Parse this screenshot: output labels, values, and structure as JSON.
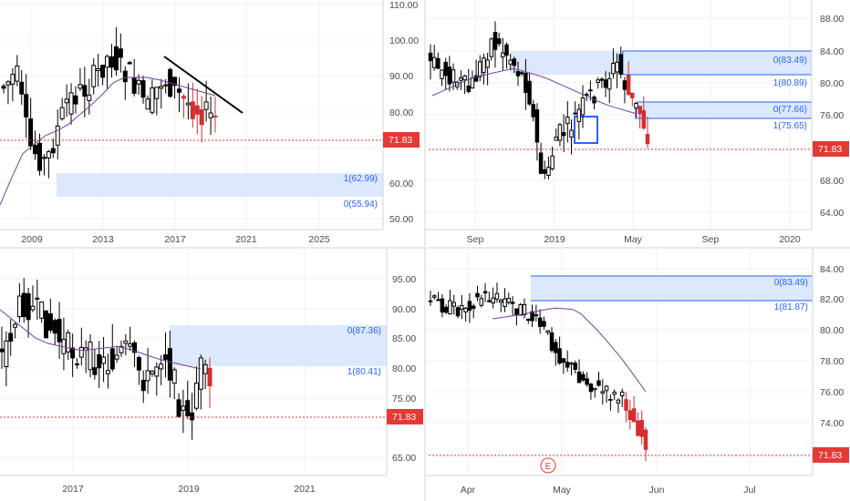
{
  "colors": {
    "bull": "#000000",
    "bull_fill": "#ffffff",
    "bear": "#000000",
    "bear_fill": "#000000",
    "down_accent": "#d32f2f",
    "ma": "#7b3fa0",
    "zone_fill": "#dce8fb",
    "zone_line": "#2962ff",
    "fib_text": "#2962ff",
    "price_line": "#e53935",
    "price_tag": "#e53935",
    "grid": "#eef0f3",
    "axis_text": "#4a4a4a",
    "separator": "#d1d4dc"
  },
  "charts": [
    {
      "id": "weekly-top-left",
      "y_ticks": [
        "110.00",
        "100.00",
        "90.00",
        "80.00",
        "70.00",
        "60.00",
        "50.00"
      ],
      "x_ticks": [
        "2009",
        "2013",
        "2017",
        "2021",
        "2025"
      ],
      "price_tag": "71.83",
      "fib": [
        {
          "label": "1(62.99)"
        },
        {
          "label": "0(55.94)"
        }
      ]
    },
    {
      "id": "daily-top-right",
      "y_ticks": [
        "88.00",
        "84.00",
        "80.00",
        "76.00",
        "72.00",
        "68.00",
        "64.00"
      ],
      "x_ticks": [
        "Sep",
        "2019",
        "May",
        "Sep",
        "2020"
      ],
      "price_tag": "71.83",
      "fib": [
        {
          "label": "0(83.49)"
        },
        {
          "label": "1(80.89)"
        },
        {
          "label": "0(77.66)"
        },
        {
          "label": "1(75.65)"
        }
      ]
    },
    {
      "id": "weekly-bottom-left",
      "y_ticks": [
        "95.00",
        "90.00",
        "85.00",
        "80.00",
        "75.00",
        "70.00",
        "65.00"
      ],
      "x_ticks": [
        "2017",
        "2019",
        "2021"
      ],
      "price_tag": "71.83",
      "fib": [
        {
          "label": "0(87.36)"
        },
        {
          "label": "1(80.41)"
        }
      ]
    },
    {
      "id": "daily-bottom-right",
      "y_ticks": [
        "84.00",
        "82.00",
        "80.00",
        "78.00",
        "76.00",
        "74.00",
        "72.00"
      ],
      "x_ticks": [
        "Apr",
        "May",
        "Jun",
        "Jul"
      ],
      "price_tag": "71.83",
      "fib": [
        {
          "label": "0(83.49)"
        },
        {
          "label": "1(81.87)"
        }
      ],
      "event_marker": "E"
    }
  ]
}
